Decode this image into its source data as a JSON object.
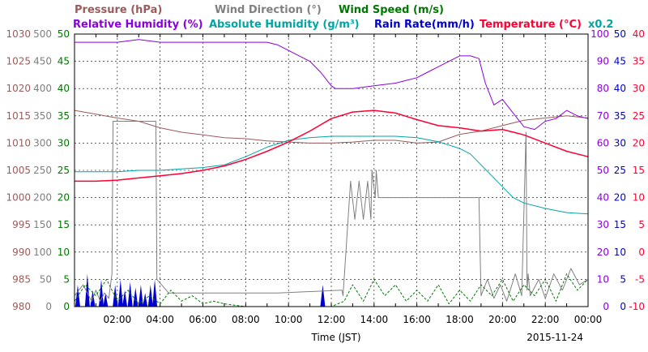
{
  "chart_data": {
    "type": "line",
    "title_rows": [
      [
        {
          "key": "pressure",
          "text": "Pressure (hPa)",
          "color": "#9a5b5b"
        },
        {
          "key": "wind_dir",
          "text": "Wind Direction (°)",
          "color": "#808080"
        },
        {
          "key": "wind_speed",
          "text": "Wind Speed (m/s)",
          "color": "#007700"
        }
      ],
      [
        {
          "key": "rel_hum",
          "text": "Relative Humidity (%)",
          "color": "#8a00e0"
        },
        {
          "key": "abs_hum",
          "text": "Absolute Humidity (g/m³)",
          "color": "#00a6a6"
        },
        {
          "key": "rain",
          "text": "Rain Rate(mm/h)",
          "color": "#0000d0"
        },
        {
          "key": "temp",
          "text": "Temperature (°C)",
          "color": "#ff0033"
        },
        {
          "key": "abs_factor",
          "text": "x0.2",
          "color": "#00a6a6"
        }
      ]
    ],
    "xlabel": "Time (JST)",
    "date_label": "2015-11-24",
    "x_ticks": [
      "02:00",
      "04:00",
      "06:00",
      "08:00",
      "10:00",
      "12:00",
      "14:00",
      "16:00",
      "18:00",
      "20:00",
      "22:00",
      "00:00"
    ],
    "xlim": [
      0,
      24
    ],
    "axes_left": [
      {
        "name": "pressure",
        "color": "#9a5b5b",
        "ticks": [
          "980",
          "985",
          "990",
          "995",
          "1000",
          "1005",
          "1010",
          "1015",
          "1020",
          "1025",
          "1030"
        ]
      },
      {
        "name": "wind_dir",
        "color": "#808080",
        "ticks": [
          "0",
          "50",
          "100",
          "150",
          "200",
          "250",
          "300",
          "350",
          "400",
          "450",
          "500"
        ]
      },
      {
        "name": "wind_speed",
        "color": "#007700",
        "ticks": [
          "0",
          "5",
          "10",
          "15",
          "20",
          "25",
          "30",
          "35",
          "40",
          "45",
          "50"
        ]
      }
    ],
    "axes_right": [
      {
        "name": "rel_hum",
        "color": "#8a00e0",
        "ticks": [
          "0",
          "10",
          "20",
          "30",
          "40",
          "50",
          "60",
          "70",
          "80",
          "90",
          "100"
        ]
      },
      {
        "name": "rain",
        "color": "#0000d0",
        "ticks": [
          "0",
          "5",
          "10",
          "15",
          "20",
          "25",
          "30",
          "35",
          "40",
          "45",
          "50"
        ]
      },
      {
        "name": "temp",
        "color": "#ff0033",
        "ticks": [
          "-10",
          "-5",
          "0",
          "5",
          "10",
          "15",
          "20",
          "25",
          "30",
          "35",
          "40"
        ]
      }
    ],
    "series": [
      {
        "key": "pressure",
        "color": "#9a5b5b",
        "width": 1,
        "x": [
          0,
          1,
          2,
          3,
          4,
          5,
          6,
          7,
          8,
          9,
          10,
          11,
          12,
          13,
          14,
          15,
          16,
          17,
          18,
          19,
          20,
          21,
          22,
          23,
          24
        ],
        "y": [
          1016,
          1015.3,
          1014.6,
          1014,
          1012.8,
          1012,
          1011.5,
          1011,
          1010.8,
          1010.4,
          1010.2,
          1010,
          1010,
          1010.2,
          1010.5,
          1010.5,
          1010,
          1010.2,
          1011.6,
          1012.2,
          1013.2,
          1014.2,
          1014.6,
          1015,
          1014.6
        ]
      },
      {
        "key": "wind_dir",
        "color": "#808080",
        "width": 1,
        "x": [
          0,
          0.4,
          0.8,
          1,
          1.2,
          1.4,
          1.6,
          1.75,
          1.8,
          3.8,
          3.85,
          4.4,
          4.5,
          9.5,
          12.5,
          12.55,
          12.7,
          12.9,
          13.1,
          13.3,
          13.5,
          13.7,
          13.85,
          13.9,
          14.05,
          14.1,
          14.2,
          14.3,
          15,
          16,
          17,
          18,
          18.9,
          19,
          19.3,
          19.6,
          19.9,
          20.2,
          20.6,
          20.9,
          21.1,
          21.15,
          21.2,
          21.3,
          21.7,
          22,
          22.4,
          22.8,
          23.2,
          23.6,
          24
        ],
        "y": [
          20,
          40,
          10,
          30,
          10,
          25,
          15,
          60,
          340,
          340,
          50,
          25,
          25,
          25,
          30,
          20,
          110,
          230,
          160,
          230,
          160,
          230,
          160,
          250,
          200,
          250,
          200,
          200,
          200,
          200,
          200,
          200,
          200,
          20,
          50,
          15,
          40,
          10,
          60,
          20,
          320,
          30,
          60,
          20,
          50,
          15,
          60,
          30,
          70,
          40,
          50
        ]
      },
      {
        "key": "wind_speed",
        "color": "#007700",
        "width": 1,
        "x": [
          0,
          0.5,
          1,
          1.5,
          2,
          2.5,
          3,
          3.5,
          4,
          4.5,
          5,
          5.5,
          6,
          6.5,
          7,
          8,
          9,
          10,
          11,
          12,
          12.6,
          13,
          13.5,
          14,
          14.5,
          15,
          15.5,
          16,
          16.5,
          17,
          17.5,
          18,
          18.5,
          19,
          19.5,
          20,
          20.5,
          21,
          21.5,
          22,
          22.5,
          23,
          23.5,
          24
        ],
        "y": [
          1,
          4,
          2,
          5,
          1,
          3,
          0.5,
          2,
          0.5,
          3,
          1,
          2,
          0.5,
          1,
          0.5,
          0,
          0,
          0,
          0,
          0,
          1,
          4,
          1,
          5,
          2,
          4,
          1,
          3,
          1,
          4,
          0.5,
          3,
          1,
          4,
          2,
          5,
          1,
          4,
          2,
          5,
          1,
          6,
          3,
          5
        ]
      },
      {
        "key": "rel_hum",
        "color": "#8a00e0",
        "width": 1,
        "x": [
          0,
          1,
          2,
          3,
          4,
          5,
          6,
          7,
          8,
          9,
          9.5,
          10,
          10.5,
          11,
          11.5,
          11.8,
          12,
          12.2,
          12.6,
          13,
          14,
          15,
          16,
          16.5,
          17,
          17.5,
          18,
          18.5,
          18.9,
          19.2,
          19.6,
          20,
          20.4,
          21,
          21.5,
          22,
          22.5,
          23,
          23.5,
          24
        ],
        "y": [
          97,
          97,
          97,
          98,
          97,
          97,
          97,
          97,
          97,
          97,
          96,
          94,
          92,
          90,
          86,
          83,
          81,
          80,
          80,
          80,
          81,
          82,
          84,
          86,
          88,
          90,
          92,
          92,
          91,
          82,
          74,
          76,
          72,
          66,
          65,
          68,
          69,
          72,
          70,
          69
        ]
      },
      {
        "key": "abs_hum",
        "color": "#00a6a6",
        "width": 1,
        "x": [
          0,
          1,
          2,
          3,
          4,
          5,
          6,
          7,
          8,
          9,
          10,
          11,
          12,
          13,
          14,
          15,
          16,
          17,
          18,
          18.5,
          19,
          19.5,
          20,
          20.5,
          21,
          22,
          23,
          24
        ],
        "y": [
          49.5,
          49.5,
          49.5,
          50,
          50,
          50.5,
          51,
          52,
          55,
          58.5,
          61,
          62,
          62.5,
          62.5,
          62.5,
          62.5,
          62,
          60.5,
          58,
          56,
          52,
          48,
          44,
          40,
          38,
          36,
          34.5,
          34
        ]
      },
      {
        "key": "temp",
        "color": "#ff0033",
        "width": 1.5,
        "x": [
          0,
          1,
          2,
          3,
          4,
          5,
          6,
          7,
          8,
          9,
          10,
          11,
          12,
          13,
          14,
          15,
          16,
          17,
          18,
          19,
          20,
          21,
          22,
          23,
          24
        ],
        "y": [
          13,
          13,
          13.2,
          13.6,
          14,
          14.4,
          15,
          15.8,
          17,
          18.5,
          20.2,
          22.2,
          24.5,
          25.7,
          26,
          25.5,
          24.3,
          23.2,
          22.8,
          22.2,
          22.5,
          21.5,
          20,
          18.5,
          17.5
        ]
      }
    ],
    "rain_bars": [
      {
        "x": 0.15,
        "v": 4
      },
      {
        "x": 0.6,
        "v": 6
      },
      {
        "x": 0.85,
        "v": 3
      },
      {
        "x": 1.25,
        "v": 5
      },
      {
        "x": 1.45,
        "v": 2.5
      },
      {
        "x": 1.9,
        "v": 4
      },
      {
        "x": 2.15,
        "v": 5
      },
      {
        "x": 2.35,
        "v": 3
      },
      {
        "x": 2.6,
        "v": 4.5
      },
      {
        "x": 2.85,
        "v": 3.5
      },
      {
        "x": 3.1,
        "v": 4
      },
      {
        "x": 3.3,
        "v": 2.5
      },
      {
        "x": 3.55,
        "v": 4
      },
      {
        "x": 3.75,
        "v": 5
      },
      {
        "x": 11.6,
        "v": 4
      }
    ]
  }
}
